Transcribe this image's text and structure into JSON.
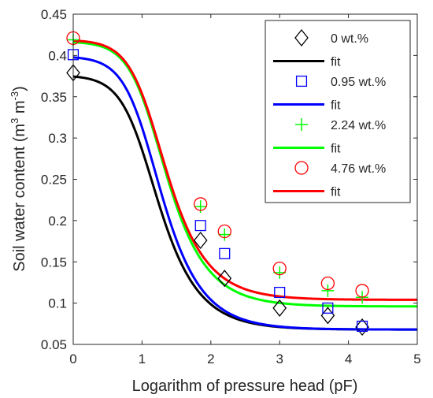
{
  "chart_data": {
    "type": "line",
    "title": "",
    "xlabel": "Logarithm of pressure head (pF)",
    "ylabel_main": "Soil water content (m",
    "ylabel_sup1": "3",
    "ylabel_mid": " m",
    "ylabel_sup2": "-3",
    "ylabel_end": ")",
    "xlim": [
      0,
      5
    ],
    "ylim": [
      0.05,
      0.45
    ],
    "xticks": [
      0,
      1,
      2,
      3,
      4,
      5
    ],
    "yticks": [
      0.05,
      0.1,
      0.15,
      0.2,
      0.25,
      0.3,
      0.35,
      0.4,
      0.45
    ],
    "grid": false,
    "legend_position": "top-right",
    "series": [
      {
        "name": "0 wt.%",
        "fit_name": "fit",
        "marker": "diamond",
        "color": "#000000",
        "x": [
          0,
          1.85,
          2.2,
          3.0,
          3.7,
          4.2
        ],
        "y": [
          0.379,
          0.176,
          0.13,
          0.094,
          0.085,
          0.071
        ],
        "fit": {
          "theta_r": 0.068,
          "theta_s": 0.376,
          "alpha": 0.1,
          "n": 2.0
        }
      },
      {
        "name": "0.95 wt.%",
        "fit_name": "fit",
        "marker": "square",
        "color": "#0000ff",
        "x": [
          0,
          1.85,
          2.2,
          3.0,
          3.7,
          4.2
        ],
        "y": [
          0.401,
          0.194,
          0.16,
          0.113,
          0.094,
          0.072
        ],
        "fit": {
          "theta_r": 0.068,
          "theta_s": 0.399,
          "alpha": 0.091,
          "n": 2.0
        }
      },
      {
        "name": "2.24 wt.%",
        "fit_name": "fit",
        "marker": "plus",
        "color": "#00ff00",
        "x": [
          0,
          1.85,
          2.2,
          3.0,
          3.7,
          4.2
        ],
        "y": [
          0.419,
          0.217,
          0.183,
          0.137,
          0.115,
          0.107
        ],
        "fit": {
          "theta_r": 0.096,
          "theta_s": 0.417,
          "alpha": 0.077,
          "n": 2.0
        }
      },
      {
        "name": "4.76 wt.%",
        "fit_name": "fit",
        "marker": "circle",
        "color": "#ff0000",
        "x": [
          0,
          1.85,
          2.2,
          3.0,
          3.7,
          4.2
        ],
        "y": [
          0.421,
          0.22,
          0.187,
          0.142,
          0.124,
          0.115
        ],
        "fit": {
          "theta_r": 0.104,
          "theta_s": 0.419,
          "alpha": 0.077,
          "n": 2.0
        }
      }
    ]
  }
}
